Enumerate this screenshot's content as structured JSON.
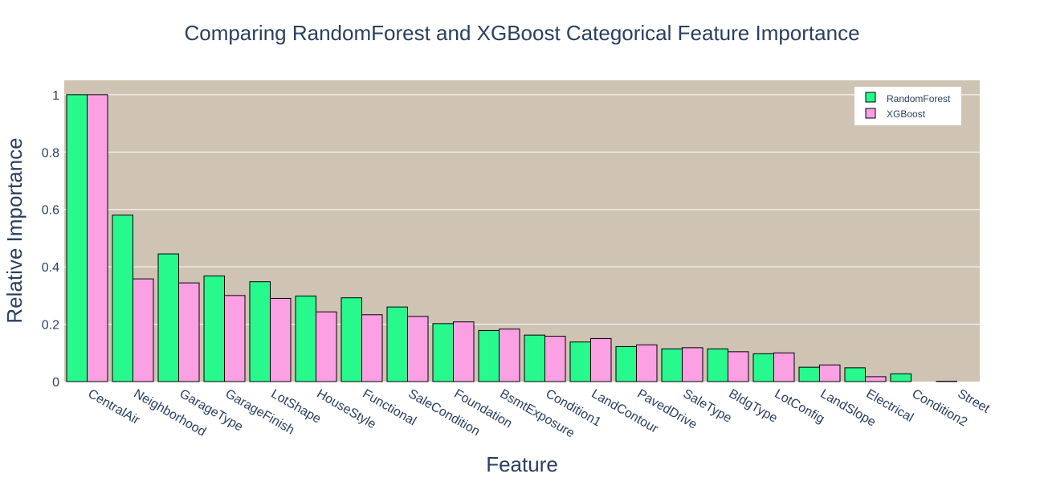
{
  "chart_data": {
    "type": "bar",
    "title": "Comparing RandomForest and XGBoost Categorical Feature Importance",
    "xlabel": "Feature",
    "ylabel": "Relative Importance",
    "ylim": [
      0,
      1.05
    ],
    "yticks": [
      0,
      0.2,
      0.4,
      0.6,
      0.8,
      1
    ],
    "ytick_labels": [
      "0",
      "0.2",
      "0.4",
      "0.6",
      "0.8",
      "1"
    ],
    "grid": true,
    "legend_position": "top-right",
    "categories": [
      "CentralAir",
      "Neighborhood",
      "GarageType",
      "GarageFinish",
      "LotShape",
      "HouseStyle",
      "Functional",
      "SaleCondition",
      "Foundation",
      "BsmtExposure",
      "Condition1",
      "LandContour",
      "PavedDrive",
      "SaleType",
      "BldgType",
      "LotConfig",
      "LandSlope",
      "Electrical",
      "Condition2",
      "Street"
    ],
    "series": [
      {
        "name": "RandomForest",
        "color": "#28f98d",
        "values": [
          1.0,
          0.58,
          0.445,
          0.368,
          0.348,
          0.298,
          0.292,
          0.26,
          0.202,
          0.178,
          0.162,
          0.138,
          0.122,
          0.114,
          0.114,
          0.097,
          0.05,
          0.048,
          0.027,
          0.001
        ]
      },
      {
        "name": "XGBoost",
        "color": "#fca0e4",
        "values": [
          1.0,
          0.358,
          0.344,
          0.3,
          0.29,
          0.243,
          0.233,
          0.227,
          0.208,
          0.183,
          0.158,
          0.15,
          0.128,
          0.118,
          0.104,
          0.1,
          0.058,
          0.017,
          0.0,
          0.0
        ]
      }
    ],
    "colors": {
      "plot_background": "#cfc3b3",
      "grid": "#ffffff",
      "text": "#2a3f5f",
      "bar_outline": "#000000"
    }
  }
}
